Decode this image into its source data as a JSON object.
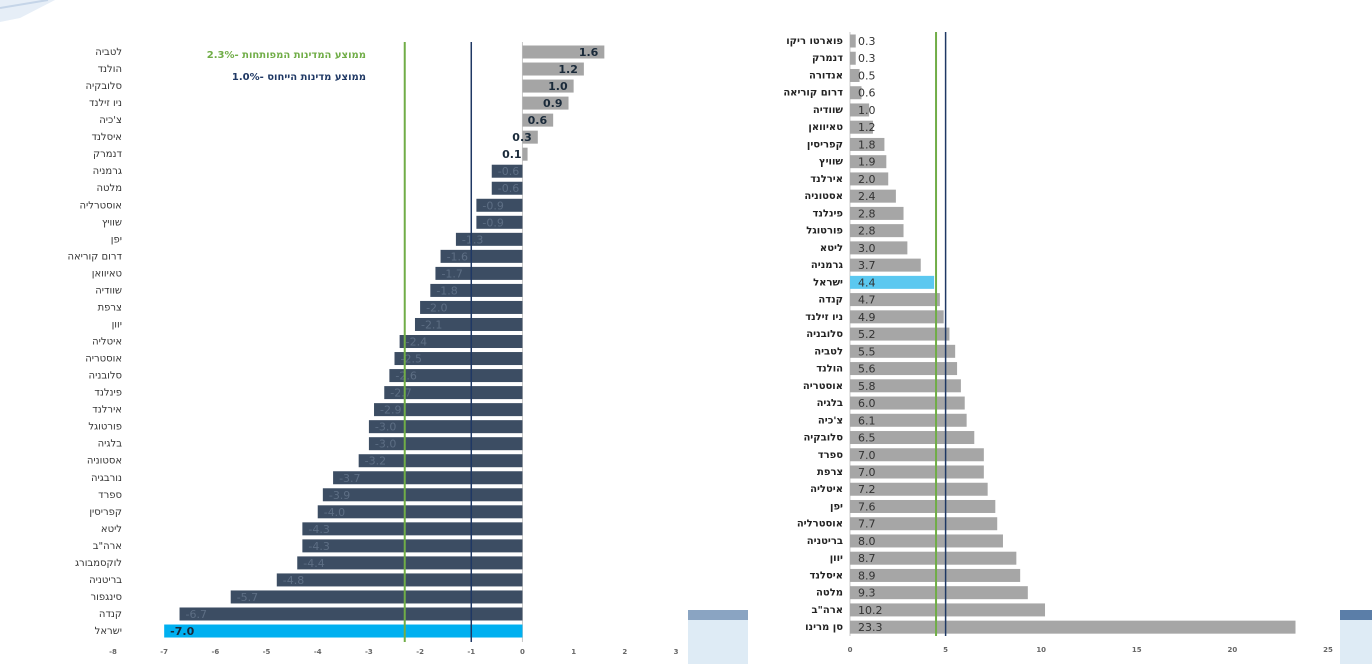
{
  "chart_data": [
    {
      "type": "hbar",
      "categories": [
        "לטביה",
        "הולנד",
        "סלובקיה",
        "ניו זילנד",
        "צ'כיה",
        "איסלנד",
        "דנמרק",
        "גרמניה",
        "מלטה",
        "אוסטרליה",
        "שוויץ",
        "יפן",
        "דרום קוריאה",
        "טאיוואן",
        "שוודיה",
        "צרפת",
        "יוון",
        "איטליה",
        "אוסטריה",
        "סלובניה",
        "פינלנד",
        "אירלנד",
        "פורטוגל",
        "בלגיה",
        "אסטוניה",
        "נורבגיה",
        "ספרד",
        "קפריסין",
        "ליטא",
        "ארה\"ב",
        "לוקסמבורג",
        "בריטניה",
        "סינגפור",
        "קנדה",
        "ישראל"
      ],
      "values": [
        1.6,
        1.2,
        1.0,
        0.9,
        0.6,
        0.3,
        0.1,
        -0.6,
        -0.6,
        -0.9,
        -0.9,
        -1.3,
        -1.6,
        -1.7,
        -1.8,
        -2.0,
        -2.1,
        -2.4,
        -2.5,
        -2.6,
        -2.7,
        -2.9,
        -3.0,
        -3.0,
        -3.2,
        -3.7,
        -3.9,
        -4.0,
        -4.3,
        -4.3,
        -4.4,
        -4.8,
        -5.7,
        -6.7,
        -7.0
      ],
      "value_labels": [
        "1.6",
        "1.2",
        "1.0",
        "0.9",
        "0.6",
        "0.3",
        "0.1",
        "-0.6",
        "-0.6",
        "-0.9",
        "-0.9",
        "-1.3",
        "-1.6",
        "-1.7",
        "-1.8",
        "-2.0",
        "-2.1",
        "-2.4",
        "-2.5",
        "-2.6",
        "-2.7",
        "-2.9",
        "-3.0",
        "-3.0",
        "-3.2",
        "-3.7",
        "-3.9",
        "-4.0",
        "-4.3",
        "-4.3",
        "-4.4",
        "-4.8",
        "-5.7",
        "-6.7",
        "-7.0"
      ],
      "color": "#3c4d63",
      "colors": [
        "#a5a5a5",
        "#a5a5a5",
        "#a5a5a5",
        "#a5a5a5",
        "#a5a5a5",
        "#a5a5a5",
        "#a5a5a5",
        "#3c4d63",
        "#3c4d63",
        "#3c4d63",
        "#3c4d63",
        "#3c4d63",
        "#3c4d63",
        "#3c4d63",
        "#3c4d63",
        "#3c4d63",
        "#3c4d63",
        "#3c4d63",
        "#3c4d63",
        "#3c4d63",
        "#3c4d63",
        "#3c4d63",
        "#3c4d63",
        "#3c4d63",
        "#3c4d63",
        "#3c4d63",
        "#3c4d63",
        "#3c4d63",
        "#3c4d63",
        "#3c4d63",
        "#3c4d63",
        "#3c4d63",
        "#3c4d63",
        "#3c4d63",
        "#00b0f0"
      ],
      "xlim": [
        -8,
        3
      ],
      "xticks": [
        -8,
        -7,
        -6,
        -5,
        -4,
        -3,
        -2,
        -1,
        0,
        1,
        2,
        3
      ],
      "reference_lines": [
        {
          "value": -2.3,
          "color": "#70ad47",
          "label": "ממוצע המדינות המפותחות -2.3%"
        },
        {
          "value": -1.0,
          "color": "#1f3864",
          "label": "ממוצע מדינות הייחוס -1.0%"
        }
      ]
    },
    {
      "type": "hbar",
      "categories": [
        "פוארטו ריקו",
        "דנמרק",
        "אנדורה",
        "דרום קוריאה",
        "שוודיה",
        "טאיוואן",
        "קפריסין",
        "שוויץ",
        "אירלנד",
        "אסטוניה",
        "פינלנד",
        "פורטוגל",
        "ליטא",
        "גרמניה",
        "ישראל",
        "קנדה",
        "ניו זילנד",
        "סלובניה",
        "לטביה",
        "הולנד",
        "אוסטריה",
        "בלגיה",
        "צ'כיה",
        "סלובקיה",
        "ספרד",
        "צרפת",
        "איטליה",
        "יפן",
        "אוסטרליה",
        "בריטניה",
        "יוון",
        "איסלנד",
        "מלטה",
        "ארה\"ב",
        "סן מרינו"
      ],
      "values": [
        0.3,
        0.3,
        0.5,
        0.6,
        1.0,
        1.2,
        1.8,
        1.9,
        2.0,
        2.4,
        2.8,
        2.8,
        3.0,
        3.7,
        4.4,
        4.7,
        4.9,
        5.2,
        5.5,
        5.6,
        5.8,
        6.0,
        6.1,
        6.5,
        7.0,
        7.0,
        7.2,
        7.6,
        7.7,
        8.0,
        8.7,
        8.9,
        9.3,
        10.2,
        23.3
      ],
      "value_labels": [
        "0.3",
        "0.3",
        "0.5",
        "0.6",
        "1.0",
        "1.2",
        "1.8",
        "1.9",
        "2.0",
        "2.4",
        "2.8",
        "2.8",
        "3.0",
        "3.7",
        "4.4",
        "4.7",
        "4.9",
        "5.2",
        "5.5",
        "5.6",
        "5.8",
        "6.0",
        "6.1",
        "6.5",
        "7.0",
        "7.0",
        "7.2",
        "7.6",
        "7.7",
        "8.0",
        "8.7",
        "8.9",
        "9.3",
        "10.2",
        "23.3"
      ],
      "color": "#a6a6a6",
      "colors": [
        "#a6a6a6",
        "#a6a6a6",
        "#a6a6a6",
        "#a6a6a6",
        "#a6a6a6",
        "#a6a6a6",
        "#a6a6a6",
        "#a6a6a6",
        "#a6a6a6",
        "#a6a6a6",
        "#a6a6a6",
        "#a6a6a6",
        "#a6a6a6",
        "#a6a6a6",
        "#5bc8f0",
        "#a6a6a6",
        "#a6a6a6",
        "#a6a6a6",
        "#a6a6a6",
        "#a6a6a6",
        "#a6a6a6",
        "#a6a6a6",
        "#a6a6a6",
        "#a6a6a6",
        "#a6a6a6",
        "#a6a6a6",
        "#a6a6a6",
        "#a6a6a6",
        "#a6a6a6",
        "#a6a6a6",
        "#a6a6a6",
        "#a6a6a6",
        "#a6a6a6",
        "#a6a6a6",
        "#a6a6a6"
      ],
      "xlim": [
        0,
        25
      ],
      "xticks": [
        0,
        5,
        10,
        15,
        20,
        25
      ],
      "reference_lines": [
        {
          "value": 4.5,
          "color": "#70ad47"
        },
        {
          "value": 5.0,
          "color": "#1f3864"
        }
      ]
    }
  ]
}
